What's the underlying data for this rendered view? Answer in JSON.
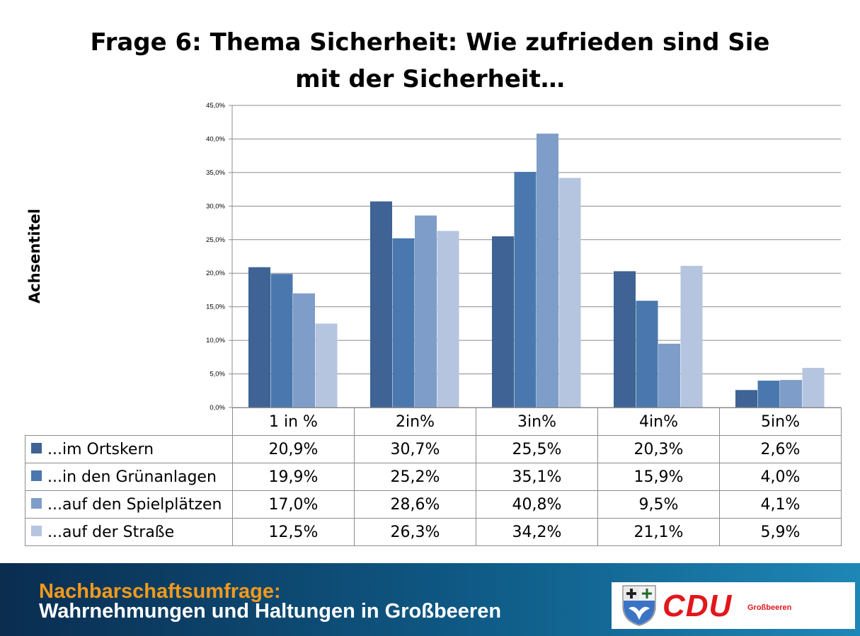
{
  "chart_data": {
    "type": "bar",
    "title": "Frage 6: Thema Sicherheit: Wie zufrieden sind Sie\nmit der Sicherheit…",
    "ylabel": "Achsentitel",
    "xlabel": "",
    "ylim": [
      0,
      45
    ],
    "yticks": [
      0,
      5,
      10,
      15,
      20,
      25,
      30,
      35,
      40,
      45
    ],
    "ytick_labels": [
      "0,0%",
      "5,0%",
      "10,0%",
      "15,0%",
      "20,0%",
      "25,0%",
      "30,0%",
      "35,0%",
      "40,0%",
      "45,0%"
    ],
    "grid": true,
    "legend": "data-table",
    "categories": [
      "1 in %",
      "2in%",
      "3in%",
      "4in%",
      "5in%"
    ],
    "series": [
      {
        "name": "...im Ortskern",
        "color": "#3e6394",
        "values": [
          20.9,
          30.7,
          25.5,
          20.3,
          2.6
        ],
        "labels": [
          "20,9%",
          "30,7%",
          "25,5%",
          "20,3%",
          "2,6%"
        ]
      },
      {
        "name": "...in den Grünanlagen",
        "color": "#4a78ae",
        "values": [
          19.9,
          25.2,
          35.1,
          15.9,
          4.0
        ],
        "labels": [
          "19,9%",
          "25,2%",
          "35,1%",
          "15,9%",
          "4,0%"
        ]
      },
      {
        "name": "...auf den Spielplätzen",
        "color": "#7f9dc9",
        "values": [
          17.0,
          28.6,
          40.8,
          9.5,
          4.1
        ],
        "labels": [
          "17,0%",
          "28,6%",
          "40,8%",
          "9,5%",
          "4,1%"
        ]
      },
      {
        "name": "...auf der Straße",
        "color": "#b5c5df",
        "values": [
          12.5,
          26.3,
          34.2,
          21.1,
          5.9
        ],
        "labels": [
          "12,5%",
          "26,3%",
          "34,2%",
          "21,1%",
          "5,9%"
        ]
      }
    ]
  },
  "footer": {
    "line1": "Nachbarschaftsumfrage:",
    "line2": "Wahrnehmungen und Haltungen in Großbeeren",
    "logo_text": "CDU",
    "logo_place": "Großbeeren",
    "brand_color": "#e3161b",
    "accent_color": "#f39a1b"
  }
}
